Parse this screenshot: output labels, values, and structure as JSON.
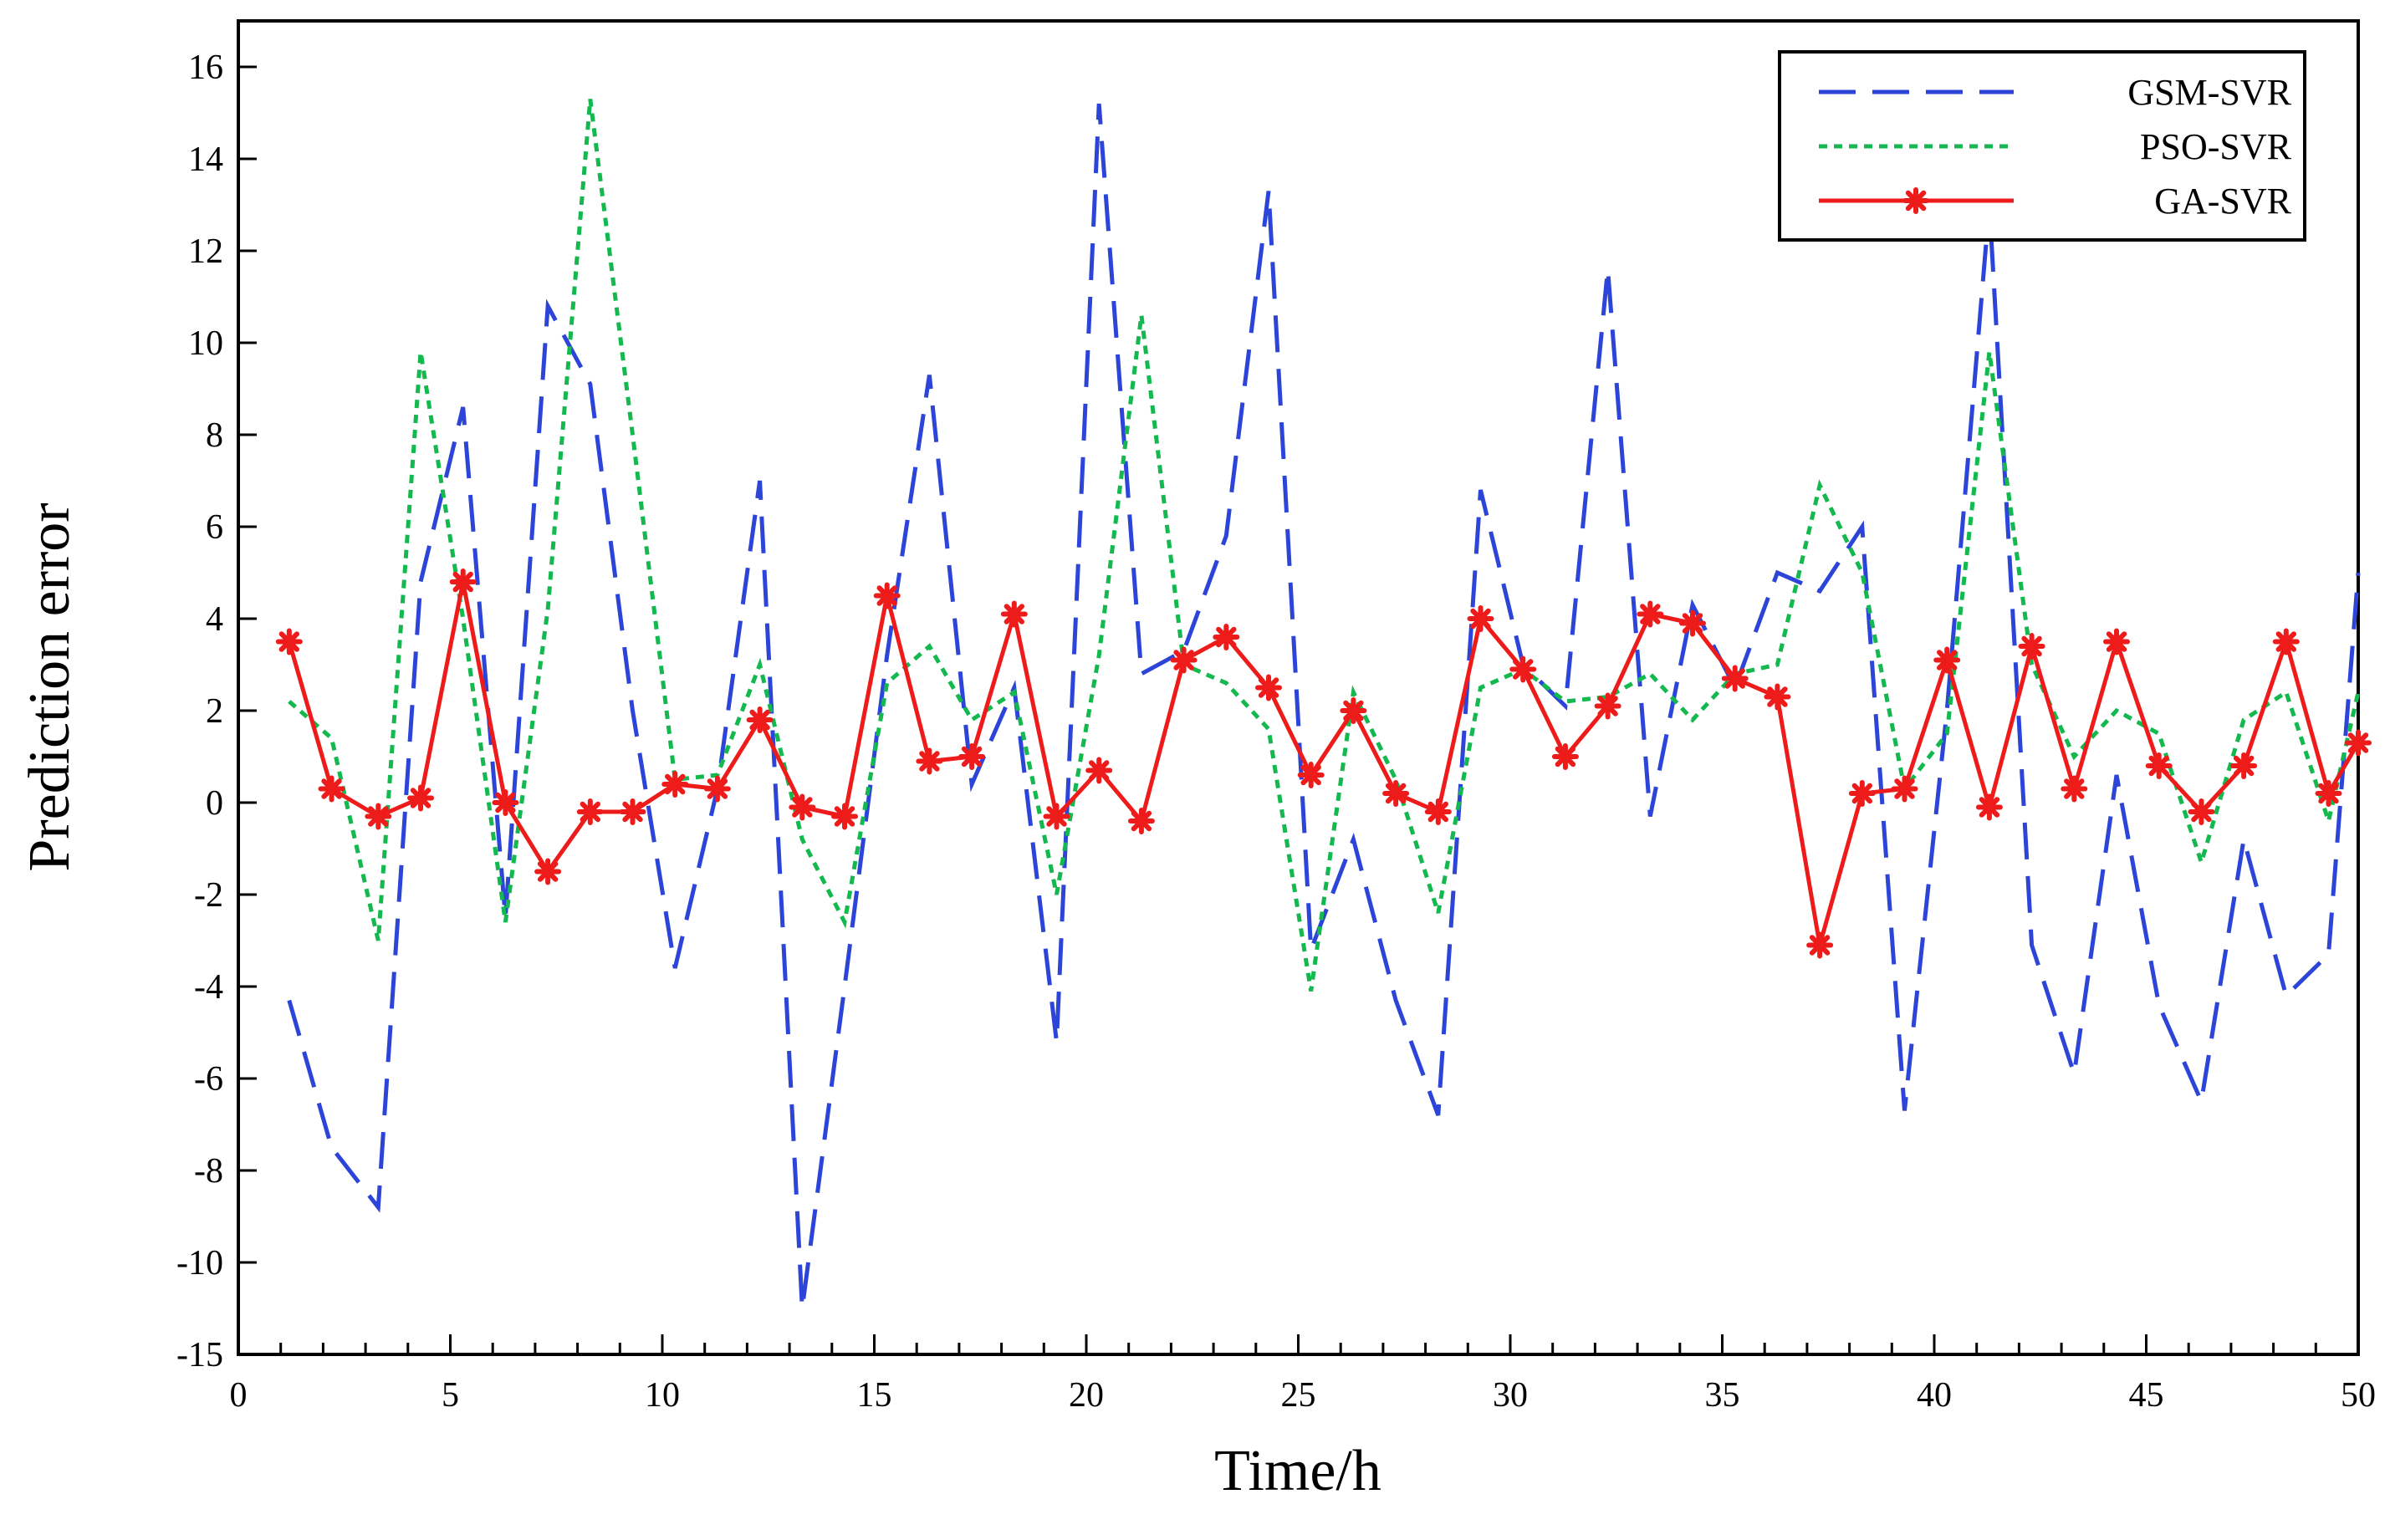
{
  "chart_data": {
    "type": "line",
    "title": "",
    "xlabel": "Time/h",
    "ylabel": "Prediction error",
    "xlim": [
      0,
      50
    ],
    "x_ticks": [
      0,
      5,
      10,
      15,
      20,
      25,
      30,
      35,
      40,
      45,
      50
    ],
    "x_minor_ticks": [
      1,
      2,
      3,
      4,
      6,
      7,
      8,
      9,
      11,
      12,
      13,
      14,
      16,
      17,
      18,
      19,
      21,
      22,
      23,
      24,
      26,
      27,
      28,
      29,
      31,
      32,
      33,
      34,
      36,
      37,
      38,
      39,
      41,
      42,
      43,
      44,
      46,
      47,
      48,
      49
    ],
    "y_ticks": [
      -15,
      -10,
      -8,
      -6,
      -4,
      -2,
      0,
      2,
      4,
      6,
      8,
      10,
      12,
      14,
      16
    ],
    "y_tick_labels": [
      "-15",
      "-10",
      "-8",
      "-6",
      "-4",
      "-2",
      "0",
      "2",
      "4",
      "6",
      "8",
      "10",
      "12",
      "14",
      "16"
    ],
    "ylim_note": "axis bottom labelled -15; scale linear from -12 to 17",
    "legend_position": "top-right",
    "series": [
      {
        "name": "GSM-SVR",
        "color": "#2c45d8",
        "style": "dashed",
        "x": [
          1.2,
          2.2,
          3.3,
          4.3,
          5.3,
          6.3,
          7.3,
          8.3,
          9.3,
          10.3,
          11.3,
          12.3,
          13.3,
          14.3,
          15.3,
          16.3,
          17.3,
          18.3,
          19.3,
          20.3,
          21.3,
          22.3,
          23.3,
          24.3,
          25.3,
          26.3,
          27.3,
          28.3,
          29.3,
          30.3,
          31.3,
          32.3,
          33.3,
          34.3,
          35.3,
          36.3,
          37.3,
          38.3,
          39.3,
          40.3,
          41.3,
          42.3,
          43.3,
          44.3,
          45.3,
          46.3,
          47.3,
          48.3,
          49.3,
          50
        ],
        "values": [
          -4.3,
          -7.5,
          -8.8,
          4.8,
          8.6,
          -2.5,
          10.8,
          9.1,
          2.0,
          -3.6,
          0.3,
          7.0,
          -11.0,
          -4.0,
          3.2,
          9.3,
          0.4,
          2.5,
          -5.2,
          15.2,
          2.8,
          3.3,
          5.8,
          13.3,
          -3.2,
          -0.8,
          -4.3,
          -6.8,
          6.8,
          3.0,
          2.1,
          11.6,
          -0.3,
          4.3,
          2.5,
          5.0,
          4.6,
          6.0,
          -6.7,
          2.0,
          13.0,
          -3.1,
          -5.9,
          0.6,
          -4.4,
          -6.5,
          -0.8,
          -4.2,
          -3.3,
          5.0
        ]
      },
      {
        "name": "PSO-SVR",
        "color": "#13b84e",
        "style": "dotted",
        "x": [
          1.2,
          2.2,
          3.3,
          4.3,
          5.3,
          6.3,
          7.3,
          8.3,
          9.3,
          10.3,
          11.3,
          12.3,
          13.3,
          14.3,
          15.3,
          16.3,
          17.3,
          18.3,
          19.3,
          20.3,
          21.3,
          22.3,
          23.3,
          24.3,
          25.3,
          26.3,
          27.3,
          28.3,
          29.3,
          30.3,
          31.3,
          32.3,
          33.3,
          34.3,
          35.3,
          36.3,
          37.3,
          38.3,
          39.3,
          40.3,
          41.3,
          42.3,
          43.3,
          44.3,
          45.3,
          46.3,
          47.3,
          48.3,
          49.3,
          50
        ],
        "values": [
          2.2,
          1.4,
          -3.0,
          9.8,
          4.0,
          -2.6,
          4.2,
          15.3,
          8.0,
          0.5,
          0.6,
          3.0,
          -0.8,
          -2.6,
          2.6,
          3.4,
          1.8,
          2.4,
          -2.0,
          3.2,
          10.6,
          3.0,
          2.6,
          1.6,
          -4.1,
          2.4,
          0.5,
          -2.4,
          2.5,
          2.9,
          2.2,
          2.3,
          2.8,
          1.8,
          2.8,
          3.0,
          6.9,
          5.0,
          0.3,
          1.5,
          9.8,
          3.0,
          1.0,
          2.0,
          1.5,
          -1.3,
          1.8,
          2.4,
          -0.4,
          2.4
        ]
      },
      {
        "name": "GA-SVR",
        "color": "#ee1b1b",
        "style": "solid-star",
        "x": [
          1.2,
          2.2,
          3.3,
          4.3,
          5.3,
          6.3,
          7.3,
          8.3,
          9.3,
          10.3,
          11.3,
          12.3,
          13.3,
          14.3,
          15.3,
          16.3,
          17.3,
          18.3,
          19.3,
          20.3,
          21.3,
          22.3,
          23.3,
          24.3,
          25.3,
          26.3,
          27.3,
          28.3,
          29.3,
          30.3,
          31.3,
          32.3,
          33.3,
          34.3,
          35.3,
          36.3,
          37.3,
          38.3,
          39.3,
          40.3,
          41.3,
          42.3,
          43.3,
          44.3,
          45.3,
          46.3,
          47.3,
          48.3,
          49.3,
          50
        ],
        "values": [
          3.5,
          0.3,
          -0.3,
          0.1,
          4.8,
          0.0,
          -1.5,
          -0.2,
          -0.2,
          0.4,
          0.3,
          1.8,
          -0.1,
          -0.3,
          4.5,
          0.9,
          1.0,
          4.1,
          -0.3,
          0.7,
          -0.4,
          3.1,
          3.6,
          2.5,
          0.6,
          2.0,
          0.2,
          -0.2,
          4.0,
          2.9,
          1.0,
          2.1,
          4.1,
          3.9,
          2.7,
          2.3,
          -3.1,
          0.2,
          0.3,
          3.1,
          -0.1,
          3.4,
          0.3,
          3.5,
          0.8,
          -0.2,
          0.8,
          3.5,
          0.2,
          1.3
        ]
      }
    ]
  }
}
